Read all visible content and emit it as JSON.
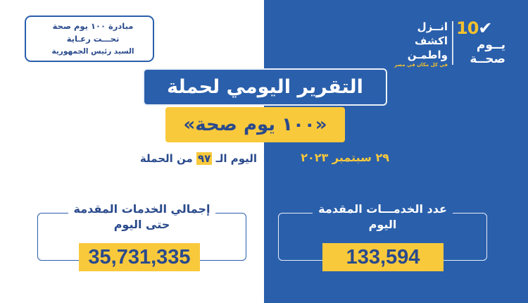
{
  "colors": {
    "brand_blue": "#2a5fab",
    "accent_yellow": "#f9c93c",
    "text_dark_blue": "#2a4a8c"
  },
  "sponsor": {
    "lines": [
      "مبادرة ١٠٠ يوم صحة",
      "تحـــت رعـاية",
      "السيد رئيس الجمهورية"
    ]
  },
  "logo": {
    "number": "10",
    "check_icon": "check-circle-icon",
    "name_lines": [
      "يــوم",
      "صحــة"
    ],
    "slogan_lines": [
      "انــزل",
      "اكشف",
      "واطمـن"
    ],
    "slogan_sub": "في كل مكان في مصر"
  },
  "title": "التقرير اليومي لحملة",
  "subtitle": "«١٠٠ يوم صحة»",
  "day": {
    "prefix": "اليوم الـ",
    "number": "٩٧",
    "suffix": "من الحملة"
  },
  "date": "٢٩  سبتمبر ٢٠٢٣",
  "daily": {
    "label_line1": "عدد الخدمـــات المقدمة",
    "label_line2": "اليوم",
    "value": "133,594"
  },
  "total": {
    "label_line1": "إجمالي الخدمات المقدمة",
    "label_line2": "حتى اليوم",
    "value": "35,731,335"
  }
}
